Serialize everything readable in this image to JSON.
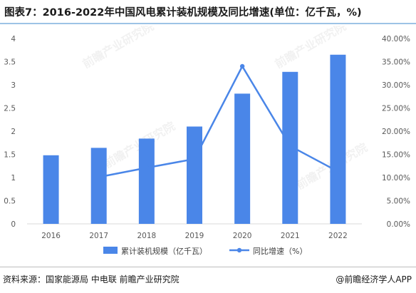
{
  "title": "图表7：2016-2022年中国风电累计装机规模及同比增速(单位：亿千瓦，%)",
  "source": "资料来源：国家能源局 中电联 前瞻产业研究院",
  "brand": "@前瞻经济学人APP",
  "watermark": "前瞻产业研究院",
  "chart_data": {
    "type": "bar+line",
    "categories": [
      "2016",
      "2017",
      "2018",
      "2019",
      "2020",
      "2021",
      "2022"
    ],
    "series": [
      {
        "name": "累计装机规模（亿千瓦）",
        "type": "bar",
        "axis": "left",
        "color": "#4a86e8",
        "values": [
          1.48,
          1.64,
          1.84,
          2.1,
          2.81,
          3.28,
          3.65
        ]
      },
      {
        "name": "同比增速（%）",
        "type": "line",
        "axis": "right",
        "color": "#4a86e8",
        "values": [
          null,
          10.1,
          12.1,
          14.0,
          34.0,
          16.8,
          11.3
        ]
      }
    ],
    "y_left": {
      "ylim": [
        0,
        4
      ],
      "ticks": [
        "0",
        "0.5",
        "1",
        "1.5",
        "2",
        "2.5",
        "3",
        "3.5",
        "4"
      ]
    },
    "y_right": {
      "ylim": [
        0,
        40
      ],
      "ticks": [
        "0.00%",
        "5.00%",
        "10.00%",
        "15.00%",
        "20.00%",
        "25.00%",
        "30.00%",
        "35.00%",
        "40.00%"
      ]
    },
    "legend_position": "bottom",
    "grid": false
  }
}
